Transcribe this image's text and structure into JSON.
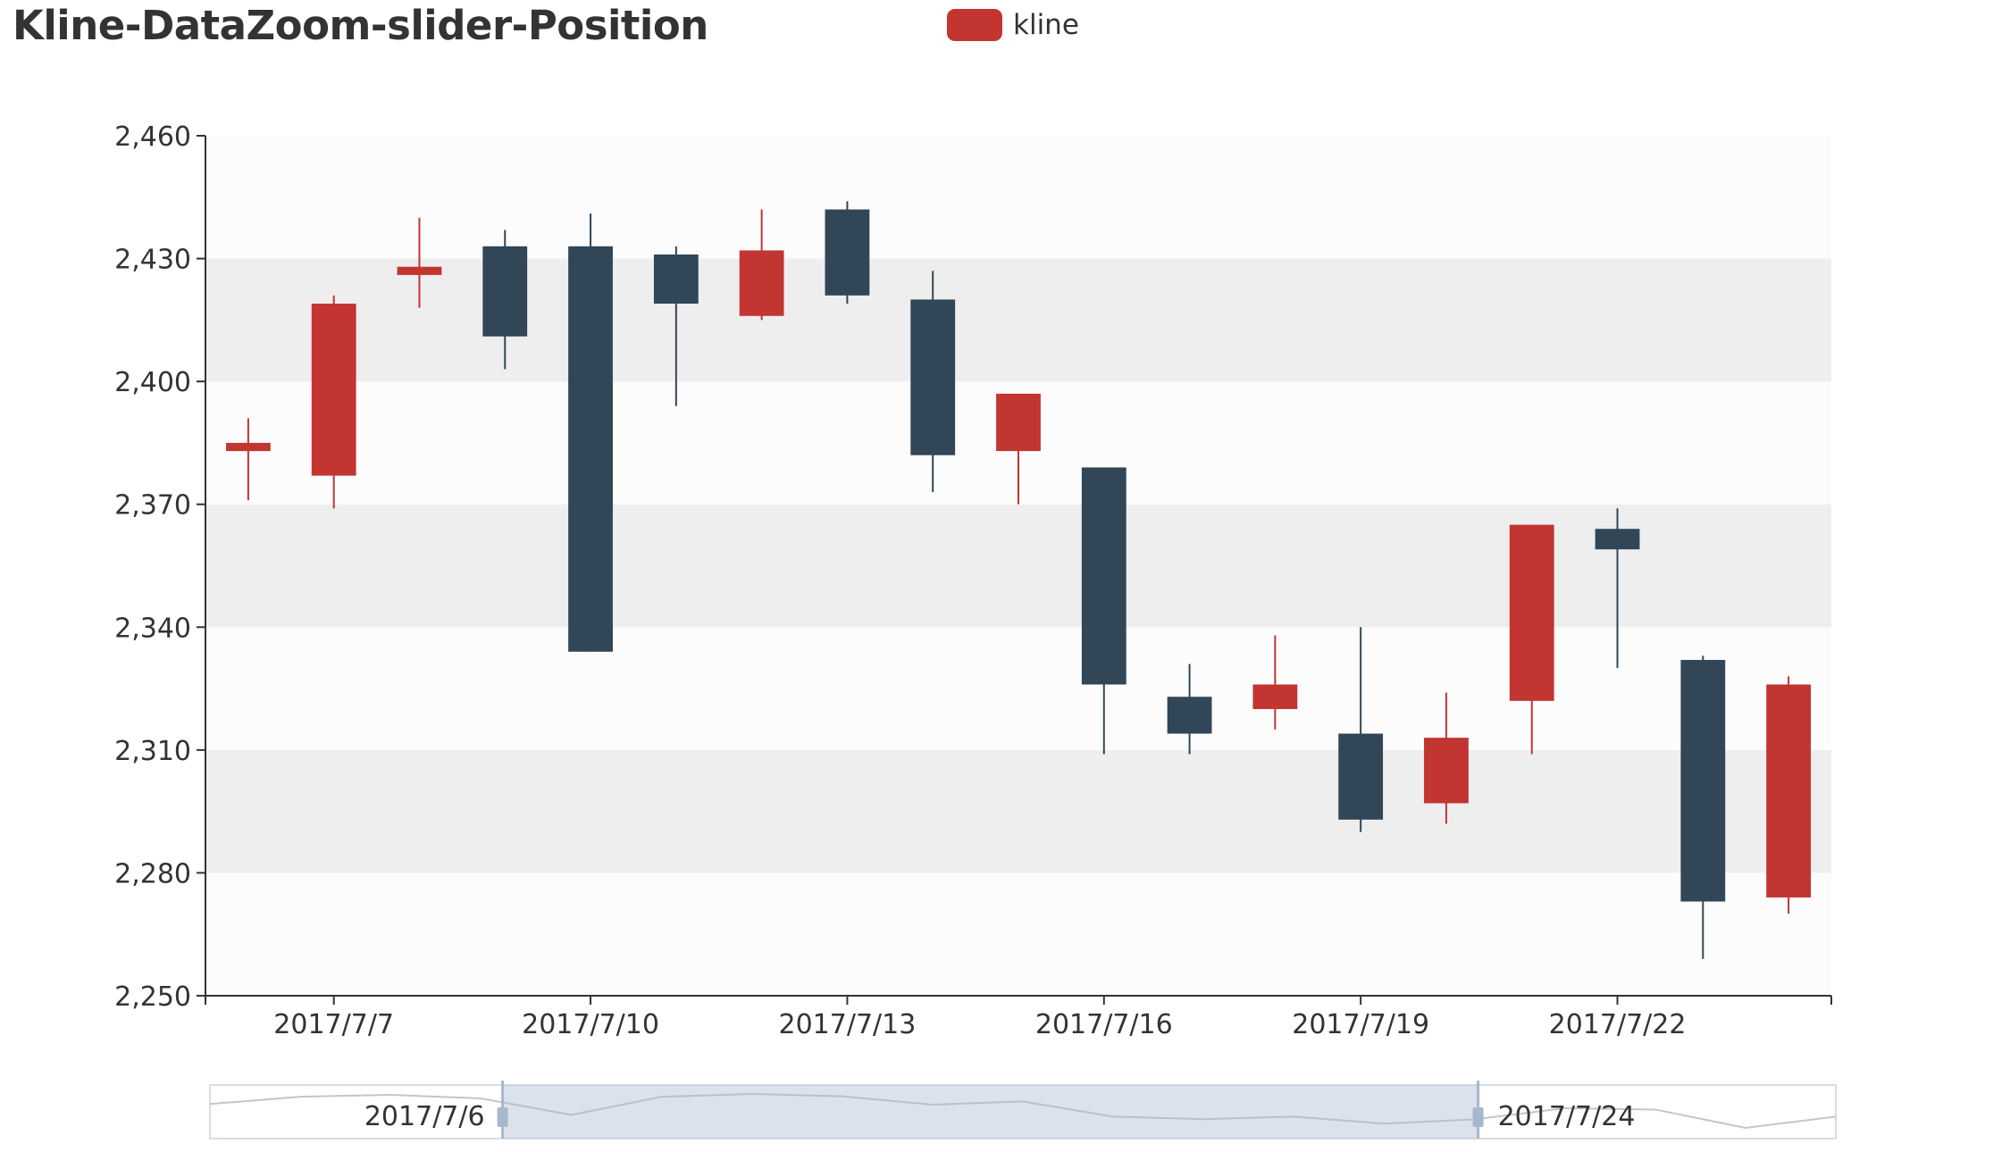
{
  "title": "Kline-DataZoom-slider-Position",
  "legend": {
    "label": "kline",
    "color": "#c23531"
  },
  "colors": {
    "up": "#c23531",
    "down": "#314656",
    "axis": "#333333",
    "band": "#eeeeee",
    "band_alt": "#fcfcfc"
  },
  "chart_data": {
    "type": "candlestick",
    "title": "Kline-DataZoom-slider-Position",
    "legend": [
      "kline"
    ],
    "xlabel": "",
    "ylabel": "",
    "ylim": [
      2250,
      2460
    ],
    "yticks": [
      2250,
      2280,
      2310,
      2340,
      2370,
      2400,
      2430,
      2460
    ],
    "ytick_labels": [
      "2,250",
      "2,280",
      "2,310",
      "2,340",
      "2,370",
      "2,400",
      "2,430",
      "2,460"
    ],
    "xtick_labels": [
      "2017/7/7",
      "2017/7/10",
      "2017/7/13",
      "2017/7/16",
      "2017/7/19",
      "2017/7/22"
    ],
    "xtick_category_index": [
      1,
      4,
      7,
      10,
      13,
      16
    ],
    "split_area": true,
    "categories": [
      "2017/7/6",
      "2017/7/7",
      "2017/7/8",
      "2017/7/9",
      "2017/7/10",
      "2017/7/11",
      "2017/7/12",
      "2017/7/13",
      "2017/7/14",
      "2017/7/15",
      "2017/7/16",
      "2017/7/17",
      "2017/7/18",
      "2017/7/19",
      "2017/7/20",
      "2017/7/21",
      "2017/7/22",
      "2017/7/23",
      "2017/7/24"
    ],
    "series": [
      {
        "name": "kline",
        "ohlc": [
          [
            2383,
            2385,
            2371,
            2391
          ],
          [
            2377,
            2419,
            2369,
            2421
          ],
          [
            2426,
            2428,
            2418,
            2440
          ],
          [
            2433,
            2411,
            2403,
            2437
          ],
          [
            2433,
            2334,
            2334,
            2441
          ],
          [
            2431,
            2419,
            2394,
            2433
          ],
          [
            2416,
            2432,
            2415,
            2442
          ],
          [
            2442,
            2421,
            2419,
            2444
          ],
          [
            2420,
            2382,
            2373,
            2427
          ],
          [
            2383,
            2397,
            2370,
            2397
          ],
          [
            2379,
            2326,
            2309,
            2379
          ],
          [
            2323,
            2314,
            2309,
            2331
          ],
          [
            2320,
            2326,
            2315,
            2338
          ],
          [
            2314,
            2293,
            2290,
            2340
          ],
          [
            2297,
            2313,
            2292,
            2324
          ],
          [
            2322,
            2365,
            2309,
            2365
          ],
          [
            2364,
            2359,
            2330,
            2369
          ],
          [
            2332,
            2273,
            2259,
            2333
          ],
          [
            2274,
            2326,
            2270,
            2328
          ]
        ]
      }
    ],
    "data_zoom": {
      "type": "slider",
      "start_label": "2017/7/6",
      "end_label": "2017/7/24",
      "start_percent": 18,
      "end_percent": 78
    }
  }
}
